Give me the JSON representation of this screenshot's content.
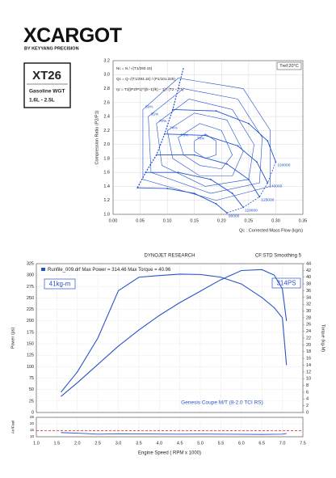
{
  "header": {
    "brand": "XCARGOT",
    "tagline": "BY KEYYANG PRECISION"
  },
  "spec_box": {
    "model": "XT26",
    "fuel": "Gasoline WGT",
    "displacement": "1.6L - 2.5L"
  },
  "chart_data": [
    {
      "type": "compressor-map",
      "ylabel": "Compression Ratio (P2/P1)",
      "xlabel": "Qc : Corrected Mass Flow (kg/s)",
      "tref": "Tref:20°C",
      "formulas": [
        "Nc = N / √(T1/293.15)",
        "Qc = Q·√(T1/293.15) / (P1/101.325)",
        "ηc = T1[(P2/P1)^((k−1)/k) − 1] / (T2 − T1)"
      ],
      "color": "#1f4fd1",
      "grid": true,
      "xlim": [
        0,
        0.35
      ],
      "xticks": [
        {
          "value": 0,
          "label": "0.00"
        },
        0.05,
        {
          "value": 0.1,
          "label": "0.10"
        },
        0.15,
        {
          "value": 0.2,
          "label": "0.20"
        },
        0.25,
        {
          "value": 0.3,
          "label": "0.30"
        },
        0.35
      ],
      "ylim": [
        1.0,
        3.2
      ],
      "yticks": [
        {
          "value": 1,
          "label": "1.0"
        },
        1.2,
        1.4,
        1.6,
        1.8,
        {
          "value": 2,
          "label": "2.0"
        },
        2.2,
        2.4,
        2.6,
        2.8,
        {
          "value": 3,
          "label": "3.0"
        },
        3.2
      ],
      "series": [
        {
          "name": "90000",
          "x": [
            0.045,
            0.1,
            0.15,
            0.19,
            0.21
          ],
          "y": [
            1.38,
            1.37,
            1.3,
            1.15,
            1.02
          ]
        },
        {
          "name": "110000",
          "x": [
            0.06,
            0.12,
            0.18,
            0.22,
            0.24
          ],
          "y": [
            1.6,
            1.6,
            1.5,
            1.3,
            1.1
          ]
        },
        {
          "name": "125000",
          "x": [
            0.08,
            0.15,
            0.21,
            0.25,
            0.27
          ],
          "y": [
            1.85,
            1.85,
            1.72,
            1.5,
            1.25
          ]
        },
        {
          "name": "140000",
          "x": [
            0.095,
            0.17,
            0.23,
            0.265,
            0.285
          ],
          "y": [
            2.15,
            2.13,
            1.98,
            1.75,
            1.45
          ]
        },
        {
          "name": "160000",
          "x": [
            0.11,
            0.19,
            0.25,
            0.285,
            0.3
          ],
          "y": [
            2.5,
            2.48,
            2.3,
            2.05,
            1.75
          ]
        }
      ],
      "surge_line": {
        "x": [
          0.045,
          0.06,
          0.08,
          0.095,
          0.11,
          0.13
        ],
        "y": [
          1.38,
          1.6,
          1.85,
          2.15,
          2.5,
          3.1
        ]
      },
      "efficiency": [
        {
          "label": "60%",
          "x": [
            0.055,
            0.12,
            0.24,
            0.29,
            0.29,
            0.19,
            0.055
          ],
          "y": [
            2.5,
            2.95,
            2.8,
            2.2,
            1.4,
            1.2,
            1.5
          ]
        },
        {
          "label": "65%",
          "x": [
            0.065,
            0.13,
            0.23,
            0.275,
            0.27,
            0.18,
            0.07
          ],
          "y": [
            2.4,
            2.8,
            2.65,
            2.1,
            1.45,
            1.3,
            1.6
          ]
        },
        {
          "label": "70%",
          "x": [
            0.08,
            0.14,
            0.22,
            0.26,
            0.25,
            0.17,
            0.09
          ],
          "y": [
            2.3,
            2.65,
            2.5,
            2.0,
            1.5,
            1.4,
            1.7
          ]
        },
        {
          "label": "74%",
          "x": [
            0.1,
            0.15,
            0.21,
            0.24,
            0.22,
            0.16,
            0.11
          ],
          "y": [
            2.2,
            2.45,
            2.35,
            1.9,
            1.55,
            1.55,
            1.8
          ]
        },
        {
          "label": "76%",
          "x": [
            0.12,
            0.16,
            0.2,
            0.22,
            0.2,
            0.16,
            0.13
          ],
          "y": [
            2.1,
            2.3,
            2.2,
            1.85,
            1.65,
            1.7,
            1.85
          ]
        },
        {
          "label": "78%",
          "x": [
            0.15,
            0.17,
            0.19,
            0.19,
            0.17,
            0.15
          ],
          "y": [
            2.05,
            2.15,
            2.05,
            1.85,
            1.8,
            1.9
          ]
        }
      ]
    },
    {
      "type": "line",
      "title": "DYNOJET RESEARCH",
      "subtitle": "CF:STD Smoothing 5",
      "legend_text": "Runfile_009.drf Max Power = 314.46  Max Torque = 40.96",
      "torque_badge": "41kg-m",
      "power_badge": "314PS",
      "vehicle": "Genesis Coupe M/T (8-2.0 TCI RS)",
      "ylabel": "Power (ps)",
      "y2label": "Torque (kg-M)",
      "grid": true,
      "xlim": [
        1.0,
        7.5
      ],
      "xticks": [
        1,
        1.5,
        2,
        2.5,
        3,
        3.5,
        4,
        4.5,
        5,
        5.5,
        6,
        6.5,
        7,
        7.5
      ],
      "ylim": [
        0,
        325
      ],
      "yticks": [
        0,
        25,
        50,
        75,
        100,
        125,
        150,
        175,
        200,
        225,
        250,
        275,
        300,
        325
      ],
      "y2lim": [
        0,
        44
      ],
      "y2ticks": [
        0,
        2,
        4,
        6,
        8,
        10,
        12,
        14,
        16,
        18,
        20,
        22,
        24,
        26,
        28,
        30,
        32,
        34,
        36,
        38,
        40,
        42,
        44
      ],
      "x": [
        1.6,
        2.0,
        2.5,
        3.0,
        3.5,
        4.0,
        4.5,
        5.0,
        5.5,
        6.0,
        6.5,
        6.8,
        7.0,
        7.1
      ],
      "series": [
        {
          "color": "#2a52c8",
          "values": [
            35,
            65,
            105,
            145,
            180,
            212,
            240,
            265,
            290,
            310,
            312,
            300,
            270,
            200
          ]
        },
        {
          "color": "#2a52c8",
          "axis": "y2",
          "values": [
            6,
            12,
            22,
            36,
            40,
            40.5,
            40.9,
            40.8,
            40,
            38,
            34,
            31,
            28,
            14
          ]
        }
      ]
    },
    {
      "type": "line",
      "ylabel": "Air/Fuel",
      "xlabel": "Engine Speed ( RPM x 1000)",
      "xlim": [
        1.0,
        7.5
      ],
      "xticks": [
        {
          "value": 1,
          "label": "1.0"
        },
        1.5,
        {
          "value": 2,
          "label": "2.0"
        },
        2.5,
        {
          "value": 3,
          "label": "3.0"
        },
        3.5,
        {
          "value": 4,
          "label": "4.0"
        },
        4.5,
        {
          "value": 5,
          "label": "5.0"
        },
        5.5,
        {
          "value": 6,
          "label": "6.0"
        },
        6.5,
        {
          "value": 7,
          "label": "7.0"
        },
        7.5
      ],
      "ylim": [
        10,
        25
      ],
      "yticks": [
        10,
        15,
        20,
        25
      ],
      "reference": 14.7,
      "reference_color": "#e02020",
      "x": [
        1.6,
        2.0,
        2.5,
        3.0,
        3.5,
        4.0,
        4.5,
        5.0,
        5.5,
        6.0,
        6.5,
        6.8,
        7.0,
        7.1
      ],
      "series": [
        {
          "color": "#2a52c8",
          "values": [
            13.2,
            12.8,
            12.0,
            12.3,
            12.2,
            12.1,
            12.0,
            12.1,
            12.0,
            11.9,
            11.8,
            11.9,
            12.0,
            12.5
          ]
        }
      ]
    }
  ]
}
